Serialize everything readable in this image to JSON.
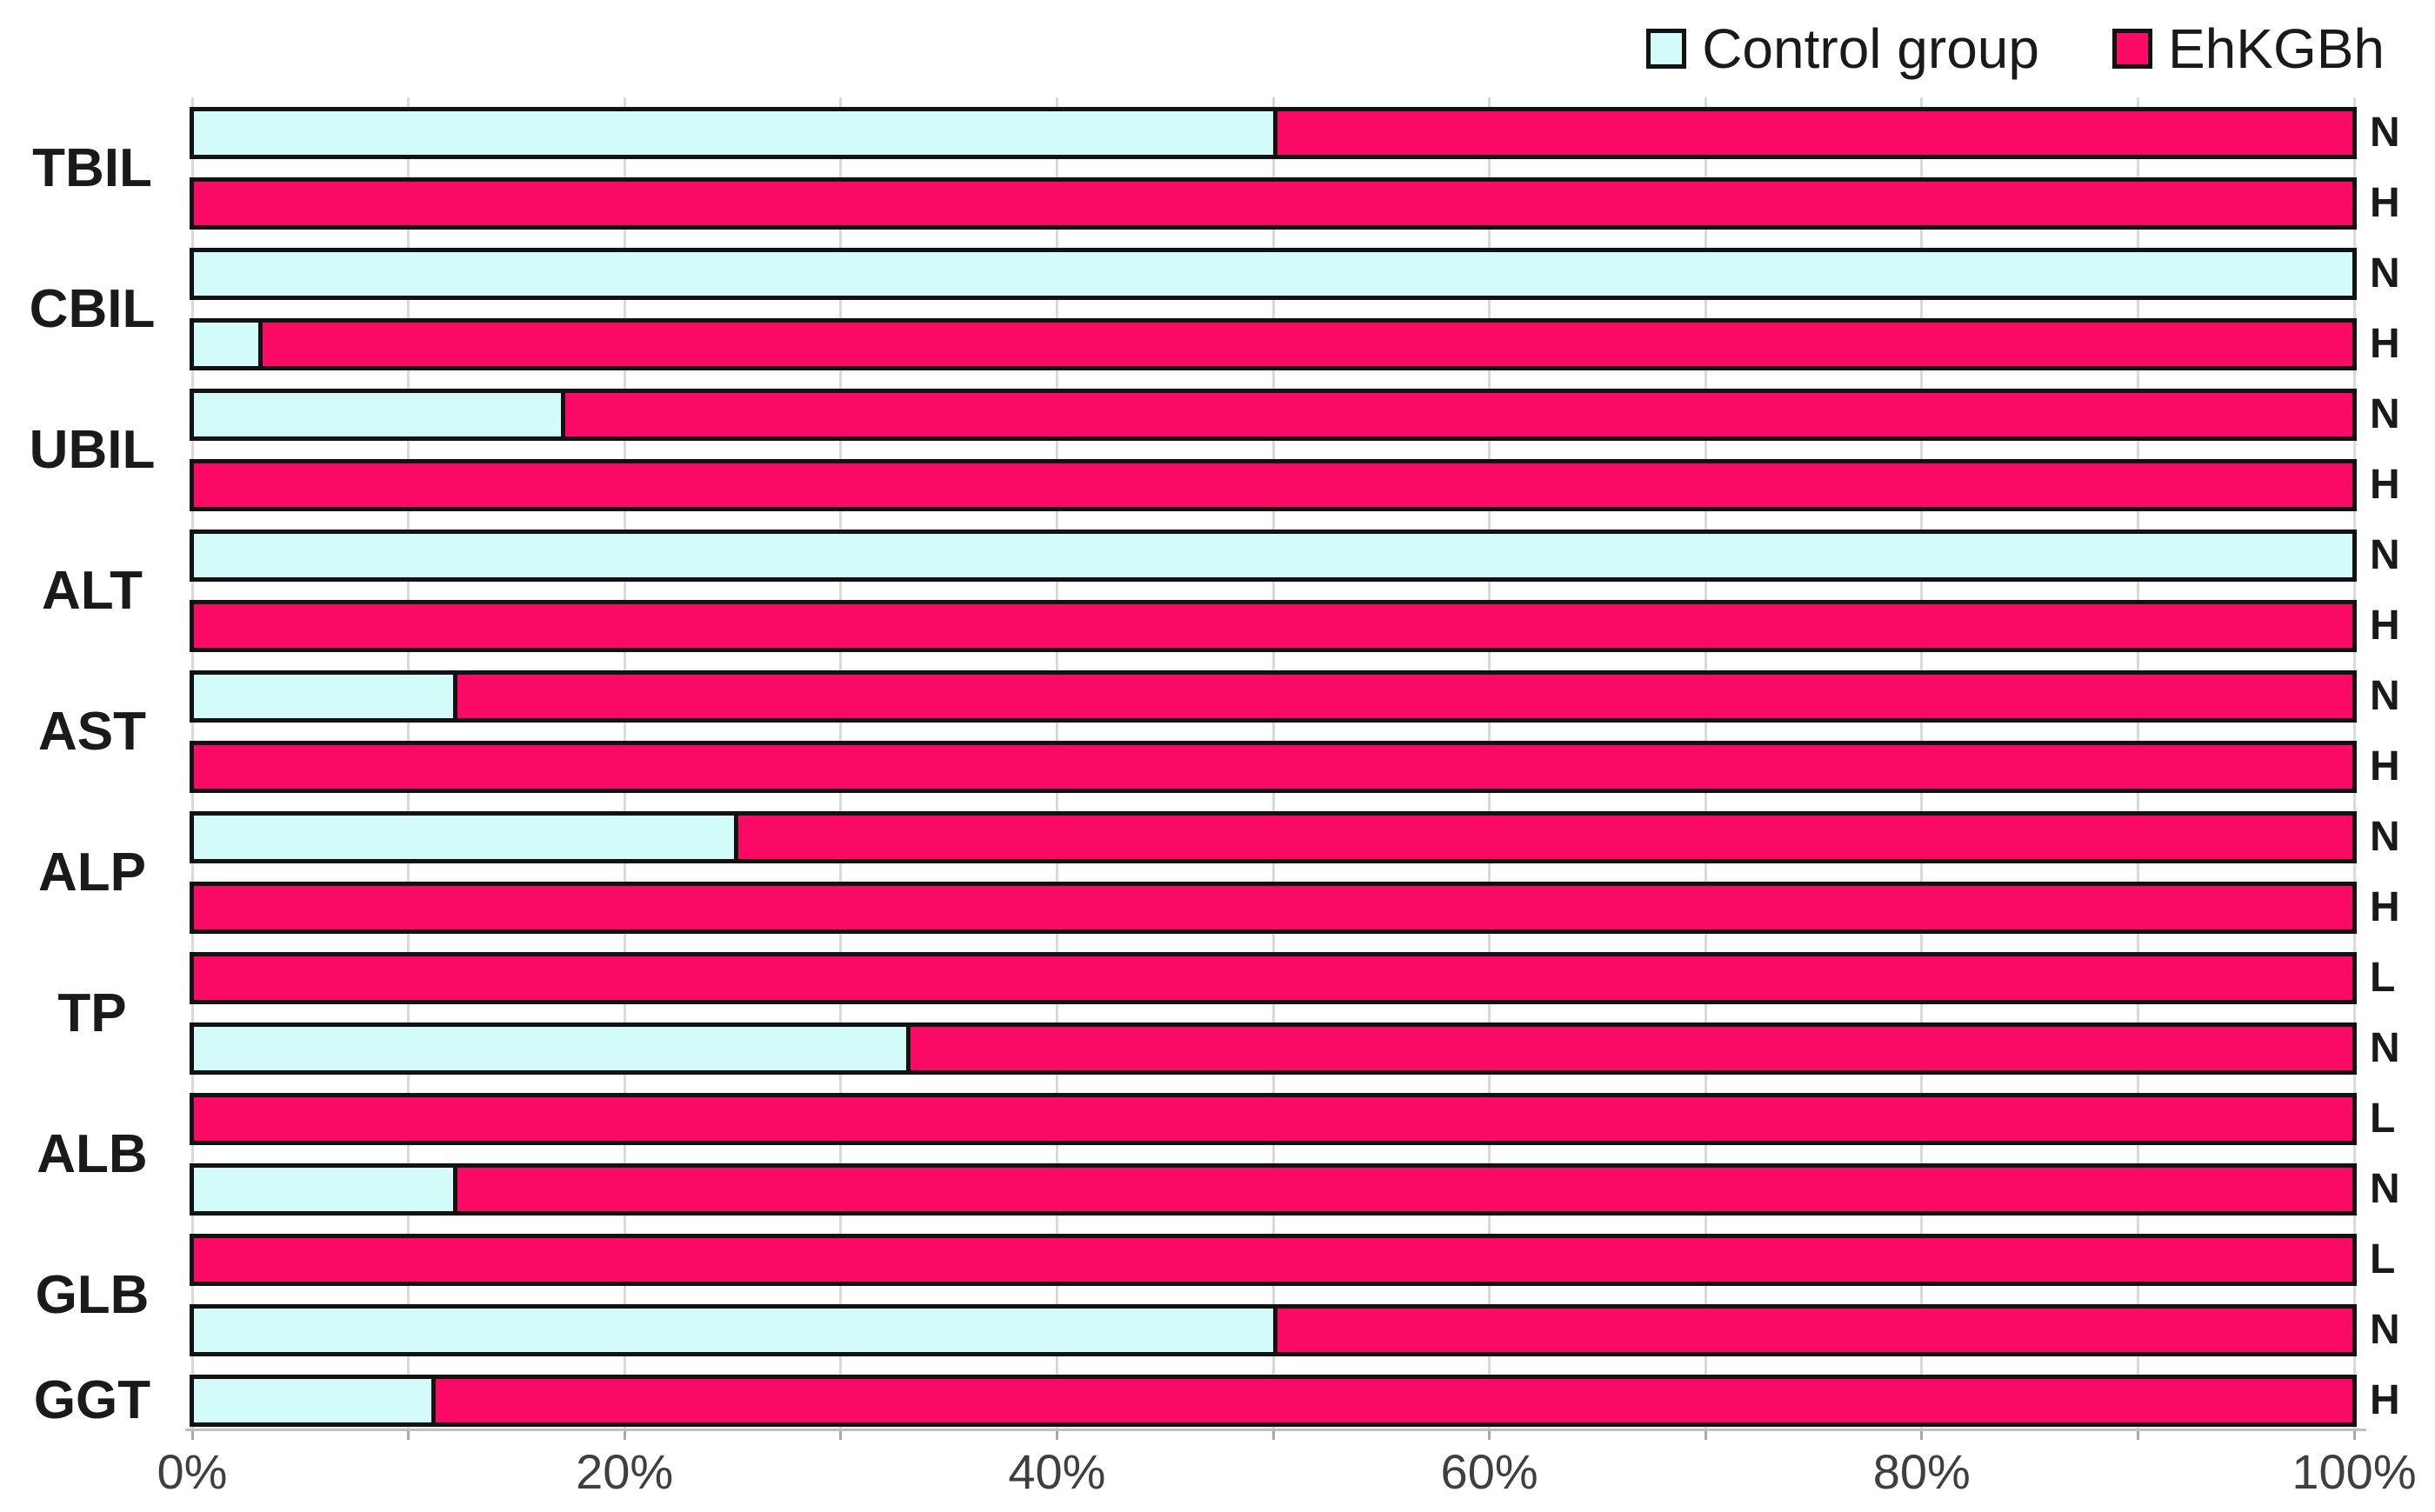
{
  "legend": {
    "items": [
      {
        "label": "Control group",
        "color": "#D2FBFA"
      },
      {
        "label": "EhKGBh",
        "color": "#FA0A64"
      }
    ]
  },
  "chart_data": {
    "type": "bar",
    "subtype": "horizontal-100pct-stacked",
    "title": "",
    "xlabel": "",
    "ylabel": "",
    "series": [
      "Control group",
      "EhKGBh"
    ],
    "series_colors": {
      "Control group": "#D2FBFA",
      "EhKGBh": "#FA0A64"
    },
    "x_axis": {
      "range": [
        0,
        100
      ],
      "tick_labels": [
        "0%",
        "20%",
        "40%",
        "60%",
        "80%",
        "100%"
      ],
      "minor_gridline_step_pct": 10,
      "gridlines": true,
      "legend_position": "top-right"
    },
    "groups": [
      {
        "category": "TBIL",
        "bars": [
          {
            "status": "N",
            "control_pct": 50,
            "ehkgbh_pct": 50
          },
          {
            "status": "H",
            "control_pct": 0,
            "ehkgbh_pct": 100
          }
        ]
      },
      {
        "category": "CBIL",
        "bars": [
          {
            "status": "N",
            "control_pct": 100,
            "ehkgbh_pct": 0
          },
          {
            "status": "H",
            "control_pct": 3,
            "ehkgbh_pct": 97
          }
        ]
      },
      {
        "category": "UBIL",
        "bars": [
          {
            "status": "N",
            "control_pct": 17,
            "ehkgbh_pct": 83
          },
          {
            "status": "H",
            "control_pct": 0,
            "ehkgbh_pct": 100
          }
        ]
      },
      {
        "category": "ALT",
        "bars": [
          {
            "status": "N",
            "control_pct": 100,
            "ehkgbh_pct": 0
          },
          {
            "status": "H",
            "control_pct": 0,
            "ehkgbh_pct": 100
          }
        ]
      },
      {
        "category": "AST",
        "bars": [
          {
            "status": "N",
            "control_pct": 12,
            "ehkgbh_pct": 88
          },
          {
            "status": "H",
            "control_pct": 0,
            "ehkgbh_pct": 100
          }
        ]
      },
      {
        "category": "ALP",
        "bars": [
          {
            "status": "N",
            "control_pct": 25,
            "ehkgbh_pct": 75
          },
          {
            "status": "H",
            "control_pct": 0,
            "ehkgbh_pct": 100
          }
        ]
      },
      {
        "category": "TP",
        "bars": [
          {
            "status": "L",
            "control_pct": 0,
            "ehkgbh_pct": 100
          },
          {
            "status": "N",
            "control_pct": 33,
            "ehkgbh_pct": 67
          }
        ]
      },
      {
        "category": "ALB",
        "bars": [
          {
            "status": "L",
            "control_pct": 0,
            "ehkgbh_pct": 100
          },
          {
            "status": "N",
            "control_pct": 12,
            "ehkgbh_pct": 88
          }
        ]
      },
      {
        "category": "GLB",
        "bars": [
          {
            "status": "L",
            "control_pct": 0,
            "ehkgbh_pct": 100
          },
          {
            "status": "N",
            "control_pct": 50,
            "ehkgbh_pct": 50
          }
        ]
      },
      {
        "category": "GGT",
        "bars": [
          {
            "status": "H",
            "control_pct": 11,
            "ehkgbh_pct": 89
          }
        ]
      }
    ]
  },
  "style": {
    "bar_border_color": "#121212",
    "gridline_color": "#DADADA",
    "axis_line_color": "#BFBFBF",
    "tick_color": "#A8A8A8",
    "axis_label_color": "#3F3F3F",
    "text_color": "#1A1A1A",
    "background": "#FFFFFF"
  }
}
